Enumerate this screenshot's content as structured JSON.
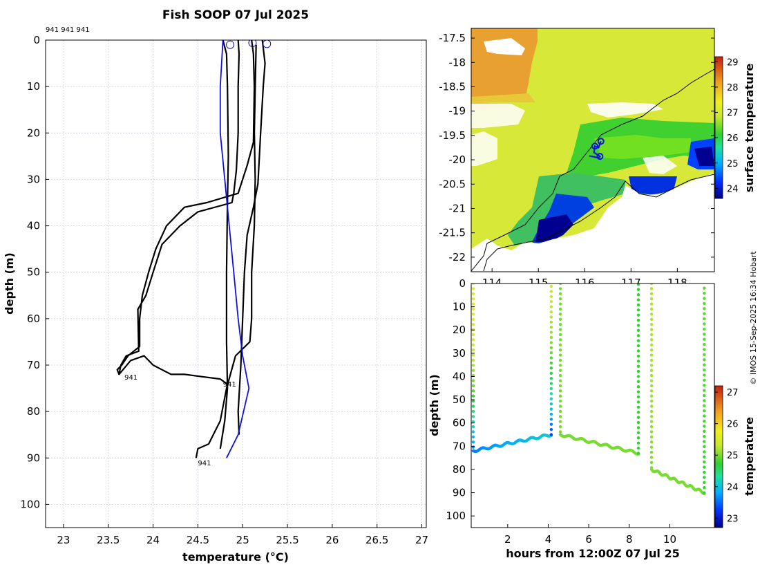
{
  "chart_data": [
    {
      "type": "line",
      "name": "temperature-profiles",
      "title": "Fish SOOP 07 Jul 2025",
      "xlabel": "temperature (°C)",
      "ylabel": "depth (m)",
      "xlim": [
        22.8,
        27.05
      ],
      "ylim": [
        105,
        0
      ],
      "xticks": [
        23,
        23.5,
        24,
        24.5,
        25,
        25.5,
        26,
        26.5,
        27
      ],
      "xtick_labels": [
        "23",
        "23.5",
        "24",
        "24.5",
        "25",
        "25.5",
        "26",
        "26.5",
        "27"
      ],
      "yticks": [
        0,
        10,
        20,
        30,
        40,
        50,
        60,
        70,
        80,
        90,
        100
      ],
      "ytick_labels": [
        "0",
        "10",
        "20",
        "30",
        "40",
        "50",
        "60",
        "70",
        "80",
        "90",
        "100"
      ],
      "grid": true,
      "header_label": "941 941 941",
      "profile_labels": [
        {
          "text": "941",
          "t": 23.68,
          "d": 72.5
        },
        {
          "text": "941",
          "t": 24.78,
          "d": 74
        },
        {
          "text": "941",
          "t": 24.5,
          "d": 91
        }
      ],
      "start_markers": [
        {
          "t": 24.86,
          "d": 1
        },
        {
          "t": 25.11,
          "d": 0.6
        },
        {
          "t": 25.27,
          "d": 0.8
        }
      ],
      "series": [
        {
          "name": "profile-1",
          "color": "#000000",
          "points": [
            [
              24.78,
              0
            ],
            [
              24.82,
              3
            ],
            [
              24.83,
              10
            ],
            [
              24.84,
              25
            ],
            [
              24.83,
              35
            ],
            [
              24.82,
              50
            ],
            [
              24.82,
              65
            ],
            [
              24.83,
              75
            ],
            [
              24.8,
              82
            ],
            [
              24.75,
              88
            ]
          ]
        },
        {
          "name": "profile-2",
          "color": "#000000",
          "points": [
            [
              24.95,
              0
            ],
            [
              24.96,
              3
            ],
            [
              24.95,
              10
            ],
            [
              24.95,
              20
            ],
            [
              24.93,
              28
            ],
            [
              24.9,
              33
            ],
            [
              24.88,
              35
            ],
            [
              24.5,
              37
            ],
            [
              24.3,
              40
            ],
            [
              24.1,
              44
            ],
            [
              24.0,
              50
            ],
            [
              23.92,
              55
            ],
            [
              23.83,
              58
            ],
            [
              23.84,
              67
            ],
            [
              23.7,
              68
            ],
            [
              23.64,
              70
            ],
            [
              23.62,
              72
            ]
          ]
        },
        {
          "name": "profile-3",
          "color": "#000000",
          "points": [
            [
              25.1,
              0
            ],
            [
              25.12,
              3
            ],
            [
              25.13,
              10
            ],
            [
              25.12,
              22
            ],
            [
              25.05,
              27
            ],
            [
              25.0,
              30
            ],
            [
              24.95,
              33
            ],
            [
              24.6,
              35
            ],
            [
              24.35,
              36
            ],
            [
              24.15,
              40
            ],
            [
              24.03,
              45
            ],
            [
              23.95,
              50
            ],
            [
              23.88,
              55
            ],
            [
              23.85,
              60
            ],
            [
              23.85,
              66
            ],
            [
              23.72,
              68
            ],
            [
              23.65,
              70
            ],
            [
              23.6,
              71
            ],
            [
              23.62,
              72
            ],
            [
              23.75,
              69
            ],
            [
              23.9,
              68
            ],
            [
              24.0,
              70
            ],
            [
              24.1,
              71
            ],
            [
              24.2,
              72
            ],
            [
              24.35,
              72
            ],
            [
              24.55,
              72.5
            ],
            [
              24.75,
              73
            ],
            [
              24.82,
              74
            ]
          ]
        },
        {
          "name": "profile-4",
          "color": "#000000",
          "points": [
            [
              25.22,
              0
            ],
            [
              25.25,
              5
            ],
            [
              25.23,
              10
            ],
            [
              25.2,
              20
            ],
            [
              25.17,
              31
            ],
            [
              25.12,
              36
            ],
            [
              25.05,
              42
            ],
            [
              25.02,
              50
            ],
            [
              25.0,
              60
            ],
            [
              24.98,
              70
            ],
            [
              24.95,
              80
            ],
            [
              24.96,
              85
            ]
          ]
        },
        {
          "name": "profile-5",
          "color": "#000000",
          "points": [
            [
              25.15,
              1
            ],
            [
              25.14,
              10
            ],
            [
              25.13,
              20
            ],
            [
              25.14,
              30
            ],
            [
              25.13,
              40
            ],
            [
              25.1,
              50
            ],
            [
              25.1,
              60
            ],
            [
              25.08,
              65
            ],
            [
              24.92,
              68
            ],
            [
              24.82,
              75
            ],
            [
              24.75,
              82
            ],
            [
              24.62,
              87
            ],
            [
              24.5,
              88
            ],
            [
              24.48,
              90
            ]
          ]
        },
        {
          "name": "reference-profile",
          "color": "#1010dd",
          "points": [
            [
              24.78,
              0
            ],
            [
              24.75,
              10
            ],
            [
              24.75,
              20
            ],
            [
              24.8,
              30
            ],
            [
              24.85,
              40
            ],
            [
              24.9,
              50
            ],
            [
              24.95,
              60
            ],
            [
              25.0,
              68
            ],
            [
              25.07,
              75
            ],
            [
              24.95,
              85
            ],
            [
              24.82,
              90
            ]
          ]
        }
      ]
    },
    {
      "type": "heatmap",
      "name": "surface-temperature-map",
      "colorbar_label": "surface temperature",
      "xticks": [
        114,
        115,
        116,
        117,
        118
      ],
      "xtick_labels": [
        "114",
        "115",
        "116",
        "117",
        "118"
      ],
      "yticks": [
        -17.5,
        -18,
        -18.5,
        -19,
        -19.5,
        -20,
        -20.5,
        -21,
        -21.5,
        -22
      ],
      "ytick_labels": [
        "-17.5",
        "-18",
        "-18.5",
        "-19",
        "-19.5",
        "-20",
        "-20.5",
        "-21",
        "-21.5",
        "-22"
      ],
      "xlim": [
        113.55,
        118.8
      ],
      "ylim": [
        -22.3,
        -17.3
      ],
      "clim": [
        23.6,
        29.2
      ],
      "colorbar_ticks": [
        24,
        25,
        26,
        27,
        28,
        29
      ],
      "colorbar_tick_labels": [
        "24",
        "25",
        "26",
        "27",
        "28",
        "29"
      ],
      "track": [
        [
          116.35,
          -19.62
        ],
        [
          116.3,
          -19.75
        ],
        [
          116.22,
          -19.72
        ],
        [
          116.2,
          -19.85
        ],
        [
          116.33,
          -19.93
        ],
        [
          116.3,
          -19.96
        ],
        [
          116.1,
          -19.92
        ]
      ],
      "track_markers": [
        [
          116.35,
          -19.62
        ],
        [
          116.22,
          -19.72
        ],
        [
          116.33,
          -19.93
        ]
      ]
    },
    {
      "type": "scatter",
      "name": "depth-time-section",
      "xlabel": "hours from 12:00Z 07 Jul 25",
      "ylabel": "depth (m)",
      "colorbar_label": "temperature",
      "xlim": [
        0.2,
        12.2
      ],
      "ylim": [
        105,
        0
      ],
      "clim": [
        22.7,
        27.2
      ],
      "xticks": [
        2,
        4,
        6,
        8,
        10
      ],
      "xtick_labels": [
        "2",
        "4",
        "6",
        "8",
        "10"
      ],
      "yticks": [
        0,
        10,
        20,
        30,
        40,
        50,
        60,
        70,
        80,
        90,
        100
      ],
      "ytick_labels": [
        "0",
        "10",
        "20",
        "30",
        "40",
        "50",
        "60",
        "70",
        "80",
        "90",
        "100"
      ],
      "colorbar_ticks": [
        23,
        24,
        25,
        26,
        27
      ],
      "colorbar_tick_labels": [
        "23",
        "24",
        "25",
        "26",
        "27"
      ],
      "casts": [
        {
          "x0": 0.3,
          "x1": 4.15,
          "bottom_start": 72,
          "bottom_end": 65,
          "t_surface": 25.6,
          "t_bottom": 23.6
        },
        {
          "x0": 4.6,
          "x1": 8.45,
          "bottom_start": 65,
          "bottom_end": 73,
          "t_surface": 25.0,
          "t_bottom": 25.0
        },
        {
          "x0": 9.1,
          "x1": 11.7,
          "bottom_start": 80,
          "bottom_end": 90,
          "t_surface": 25.2,
          "t_bottom": 25.0
        }
      ]
    }
  ],
  "watermark": "© IMOS 15-Sep-2025 16:34 Hobart"
}
